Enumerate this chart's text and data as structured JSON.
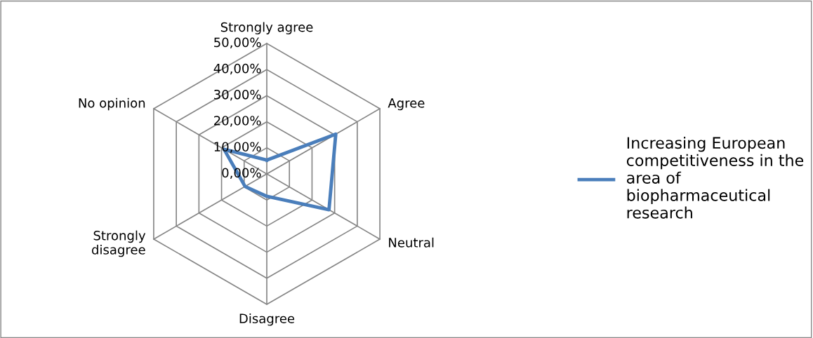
{
  "chart_data": {
    "type": "radar",
    "categories": [
      "Strongly agree",
      "Agree",
      "Neutral",
      "Disagree",
      "Strongly disagree",
      "No opinion"
    ],
    "series": [
      {
        "name": "Increasing European competitiveness in the area of biopharmaceutical research",
        "color": "#4a7ebb",
        "values": [
          5.3,
          30.5,
          27.5,
          8.6,
          9.6,
          18.9
        ]
      }
    ],
    "ylim": [
      0,
      50
    ],
    "yticks": [
      {
        "value": 0,
        "label": "0,00%"
      },
      {
        "value": 10,
        "label": "10,00%"
      },
      {
        "value": 20,
        "label": "20,00%"
      },
      {
        "value": 30,
        "label": "30,00%"
      },
      {
        "value": 40,
        "label": "40,00%"
      },
      {
        "value": 50,
        "label": "50,00%"
      }
    ],
    "grid": true,
    "legend": "right",
    "marker": "none",
    "line_style": "solid"
  }
}
